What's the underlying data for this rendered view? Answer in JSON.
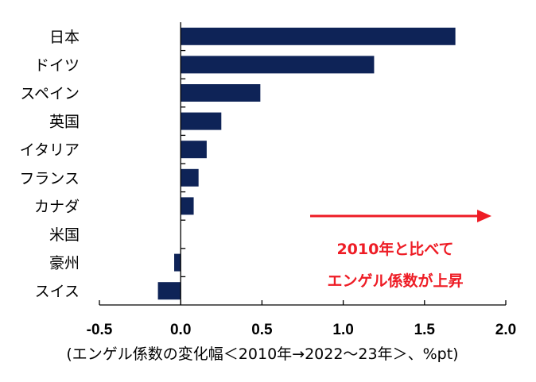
{
  "chart_data": {
    "type": "bar",
    "orientation": "horizontal",
    "categories": [
      "日本",
      "ドイツ",
      "スペイン",
      "英国",
      "イタリア",
      "フランス",
      "カナダ",
      "米国",
      "豪州",
      "スイス"
    ],
    "values": [
      1.69,
      1.19,
      0.49,
      0.25,
      0.16,
      0.11,
      0.08,
      0.0,
      -0.04,
      -0.14
    ],
    "xlabel": "(エンゲル係数の変化幅＜2010年→2022～23年＞、%pt)",
    "xlim": [
      -0.5,
      2.0
    ],
    "xticks": [
      "-0.5",
      "0.0",
      "0.5",
      "1.0",
      "1.5",
      "2.0"
    ],
    "grid": false,
    "legend": "none",
    "annotation": {
      "lines": [
        "2010年と比べて",
        "エンゲル係数が上昇"
      ],
      "color": "#ee1c25"
    },
    "bar_color": "#0e2357"
  }
}
